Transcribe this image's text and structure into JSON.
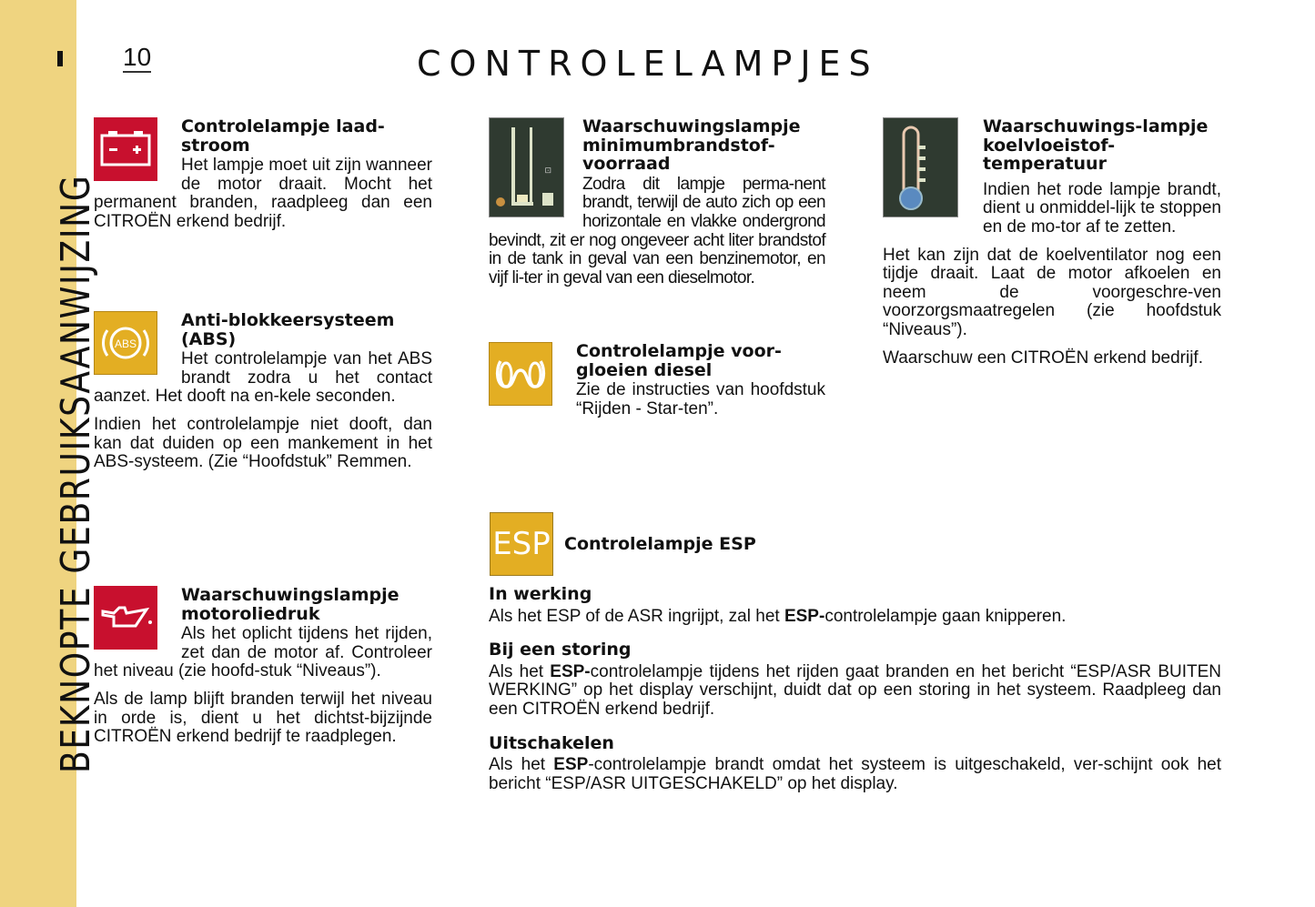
{
  "sidebar": {
    "chapter": "BEKNOPTE GEBRUIKSAANWIJZING",
    "color": "#efd480"
  },
  "page_number": "10",
  "title": "CONTROLELAMPJES",
  "sections": {
    "charge": {
      "heading": "Controlelampje laad-stroom",
      "text": "Het lampje moet uit zijn wanneer de motor draait. Mocht het permanent branden, raadpleeg dan een CITROËN erkend bedrijf.",
      "icon": "battery-icon"
    },
    "abs": {
      "heading": "Anti-blokkeersysteem (ABS)",
      "p1": "Het controlelampje van het ABS brandt zodra u het contact aanzet. Het dooft na en-kele seconden.",
      "p2": "Indien het controlelampje niet dooft, dan kan dat duiden op een mankement in het ABS-systeem. (Zie “Hoofdstuk” Remmen.",
      "icon": "abs-icon",
      "icon_label": "ABS"
    },
    "oil": {
      "heading": "Waarschuwingslampje motoroliedruk",
      "p1": "Als het oplicht tijdens het rijden, zet dan de motor af. Controleer het niveau (zie hoofd-stuk “Niveaus”).",
      "p2": "Als de lamp blijft branden terwijl het niveau in orde is, dient u het dichtst-bijzijnde CITROËN erkend bedrijf te raadplegen.",
      "icon": "oil-can-icon"
    },
    "fuel": {
      "heading": "Waarschuwingslampje minimumbrandstof-voorraad",
      "text": "Zodra dit lampje perma-nent brandt, terwijl de auto zich op een horizontale en vlakke ondergrond bevindt, zit er nog ongeveer acht liter brandstof in de tank in geval van een benzinemotor, en vijf li-ter in geval van een dieselmotor.",
      "icon": "fuel-gauge-icon"
    },
    "glow": {
      "heading": "Controlelampje voor-gloeien diesel",
      "text": "Zie de instructies van hoofdstuk “Rijden - Star-ten”.",
      "icon": "glow-plug-icon"
    },
    "coolant": {
      "heading": "Waarschuwings-lampje koelvloeistof-temperatuur",
      "p1": "Indien het rode lampje brandt, dient u onmiddel-lijk te stoppen en de mo-tor af te zetten.",
      "p2": "Het kan zijn dat de koelventilator nog een tijdje draait. Laat de motor afkoelen en neem de voorgeschre-ven voorzorgsmaatregelen (zie hoofdstuk “Niveaus”).",
      "p3": "Waarschuw een CITROËN erkend bedrijf.",
      "icon": "thermometer-icon"
    },
    "esp": {
      "heading": "Controlelampje ESP",
      "icon": "esp-icon",
      "icon_label": "ESP",
      "s1_title": "In werking",
      "s1_a": "Als het ESP of de ASR ingrijpt, zal het ",
      "s1_b": "ESP-",
      "s1_c": "controlelampje gaan knipperen.",
      "s2_title": "Bij een storing",
      "s2_a": "Als het ",
      "s2_b": "ESP-",
      "s2_c": "controlelampje tijdens het rijden gaat branden en het bericht “ESP/ASR BUITEN WERKING” op het display verschijnt, duidt dat op een storing in het systeem. Raadpleeg dan een CITROËN erkend bedrijf.",
      "s3_title": "Uitschakelen",
      "s3_a": "Als het ",
      "s3_b": "ESP",
      "s3_c": "-controlelampje brandt omdat het systeem is uitgeschakeld, ver-schijnt ook het bericht “ESP/ASR UITGESCHAKELD” op het display."
    }
  }
}
